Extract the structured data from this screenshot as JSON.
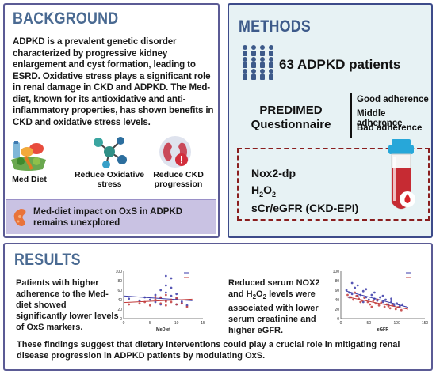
{
  "background": {
    "title": "BACKGROUND",
    "paragraph": "ADPKD is a prevalent genetic disorder characterized by progressive kidney enlargement and cyst formation, leading to ESRD. Oxidative stress plays a significant role in renal damage in CKD and ADPKD. The Med-diet, known for its antioxidative and anti-inflammatory properties, has shown benefits in CKD and oxidative stress levels.",
    "icons": [
      {
        "label": "Med Diet",
        "icon": "vegetables-icon"
      },
      {
        "label": "Reduce Oxidative stress",
        "icon": "molecule-icon"
      },
      {
        "label": "Reduce CKD progression",
        "icon": "kidney-warning-icon"
      }
    ],
    "unexplored": "Med-diet impact on OxS in ADPKD remains unexplored"
  },
  "methods": {
    "title": "METHODS",
    "patients": "63 ADPKD patients",
    "questionnaire": "PREDIMED Questionnaire",
    "adherence": [
      "Good adherence",
      "Middle adherence",
      "Bad adherence"
    ],
    "markers": [
      "Nox2-dp",
      "H2O2",
      "sCr/eGFR (CKD-EPI)"
    ]
  },
  "results": {
    "title": "RESULTS",
    "text_left": "Patients with higher adherence to the Med-diet showed significantly lower levels of OxS markers.",
    "text_middle": "Reduced serum NOX2 and H2O2 levels were associated with lower serum creatinine and higher eGFR.",
    "conclusion": "These findings suggest that dietary interventions could play a crucial role in mitigating renal disease progression in ADPKD patients by modulating OxS."
  },
  "chart_data": [
    {
      "type": "scatter",
      "xlabel": "MeDiet",
      "ylabel": "",
      "xlim": [
        0,
        15
      ],
      "ylim": [
        0,
        100
      ],
      "xticks": [
        "0",
        "5",
        "10",
        "15"
      ],
      "yticks": [
        "0",
        "20",
        "40",
        "60",
        "80",
        "100"
      ],
      "series": [
        {
          "name": "",
          "color": "#3a3aa8",
          "x": [
            1,
            3,
            4,
            5,
            6,
            6,
            7,
            7,
            8,
            8,
            8,
            9,
            9,
            10,
            10,
            11,
            11,
            12,
            8,
            9,
            7,
            10
          ],
          "y": [
            42,
            38,
            45,
            40,
            50,
            35,
            44,
            60,
            70,
            38,
            55,
            48,
            85,
            42,
            30,
            36,
            33,
            28,
            90,
            65,
            30,
            52
          ],
          "trend": [
            [
              0,
              48
            ],
            [
              13,
              38
            ]
          ]
        },
        {
          "name": "",
          "color": "#c23b3b",
          "x": [
            1,
            3,
            4,
            5,
            6,
            7,
            7,
            8,
            8,
            9,
            9,
            10,
            10,
            11,
            12,
            6,
            8
          ],
          "y": [
            30,
            32,
            35,
            28,
            40,
            32,
            45,
            36,
            28,
            40,
            35,
            30,
            44,
            32,
            25,
            46,
            50
          ],
          "trend": [
            [
              0,
              34
            ],
            [
              13,
              41
            ]
          ]
        }
      ]
    },
    {
      "type": "scatter",
      "xlabel": "eGFR",
      "ylabel": "",
      "xlim": [
        0,
        150
      ],
      "ylim": [
        0,
        100
      ],
      "xticks": [
        "0",
        "50",
        "100",
        "150"
      ],
      "yticks": [
        "0",
        "20",
        "40",
        "60",
        "80",
        "100"
      ],
      "series": [
        {
          "name": "",
          "color": "#3a3aa8",
          "x": [
            10,
            15,
            20,
            25,
            30,
            35,
            40,
            45,
            50,
            55,
            60,
            65,
            70,
            75,
            80,
            85,
            90,
            95,
            100,
            105,
            110,
            20,
            30,
            45,
            60,
            75,
            90,
            15,
            40
          ],
          "y": [
            60,
            55,
            52,
            65,
            48,
            50,
            58,
            45,
            40,
            50,
            42,
            38,
            45,
            35,
            40,
            30,
            36,
            28,
            32,
            26,
            30,
            75,
            70,
            62,
            55,
            48,
            42,
            45,
            35
          ],
          "trend": [
            [
              10,
              58
            ],
            [
              120,
              24
            ]
          ]
        },
        {
          "name": "",
          "color": "#c23b3b",
          "x": [
            12,
            18,
            22,
            28,
            32,
            38,
            42,
            48,
            52,
            58,
            62,
            68,
            72,
            78,
            82,
            88,
            92,
            98,
            102,
            108,
            25,
            35,
            55,
            65,
            85
          ],
          "y": [
            50,
            45,
            40,
            48,
            42,
            38,
            44,
            35,
            30,
            38,
            32,
            28,
            34,
            25,
            30,
            22,
            28,
            20,
            24,
            18,
            55,
            35,
            25,
            40,
            26
          ],
          "trend": [
            [
              10,
              46
            ],
            [
              120,
              20
            ]
          ]
        }
      ]
    }
  ]
}
